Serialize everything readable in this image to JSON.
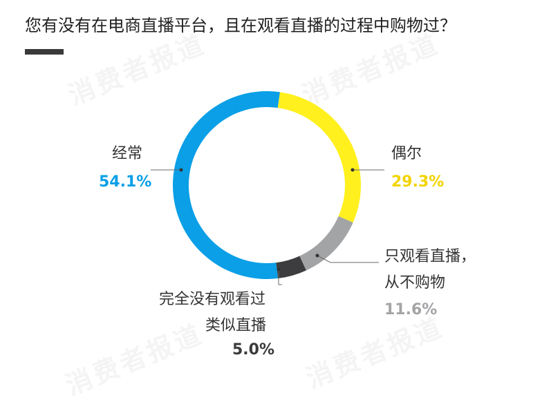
{
  "header": {
    "title": "您有没有在电商直播平台，且在观看直播的过程中购物过？"
  },
  "watermark_text": "消费者报道",
  "chart_data": {
    "type": "pie",
    "style": "donut",
    "title": "您有没有在电商直播平台，且在观看直播的过程中购物过？",
    "slices": [
      {
        "label": "偶尔",
        "value": 29.3,
        "value_label": "29.3%",
        "color": "#fff01e"
      },
      {
        "label": "只观看直播，从不购物",
        "label_lines": [
          "只观看直播，",
          "从不购物"
        ],
        "value": 11.6,
        "value_label": "11.6%",
        "color": "#a3a4a6"
      },
      {
        "label": "完全没有观看过类似直播",
        "label_lines": [
          "完全没有观看过",
          "类似直播"
        ],
        "value": 5.0,
        "value_label": "5.0%",
        "color": "#3d3d3f"
      },
      {
        "label": "经常",
        "value": 54.1,
        "value_label": "54.1%",
        "color": "#0a9fe6"
      }
    ],
    "value_colors": {
      "经常": "#0a9fe6",
      "偶尔": "#f2d400",
      "只观看直播，从不购物": "#a3a4a6",
      "完全没有观看过类似直播": "#3a3a3a"
    }
  }
}
